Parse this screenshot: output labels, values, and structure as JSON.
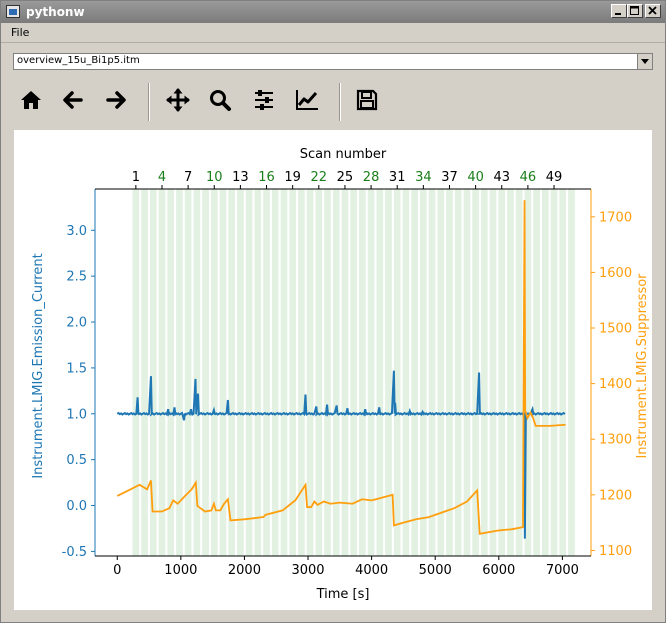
{
  "window": {
    "title": "pythonw",
    "controls": [
      "minimize",
      "maximize",
      "close"
    ]
  },
  "menu": {
    "file": "File"
  },
  "file_select": {
    "value": "overview_15u_Bi1p5.itm"
  },
  "toolbar": {
    "items": [
      "home-icon",
      "back-arrow-icon",
      "forward-arrow-icon",
      "pan-icon",
      "zoom-icon",
      "subplots-config-icon",
      "axes-edit-icon",
      "save-icon"
    ]
  },
  "colors": {
    "emission": "#1f77b4",
    "suppressor": "#ff9f0e",
    "scan_shade": "#e3f1e3",
    "scan_label_even": "#000000",
    "scan_label_green": "#1a7f1a"
  },
  "chart_data": {
    "type": "line",
    "xlabel": "Time [s]",
    "ylabel_left": "Instrument.LMIG.Emission_Current",
    "ylabel_right": "Instrument.LMIG.Suppressor",
    "top_xlabel": "Scan number",
    "xlim": [
      -350,
      7450
    ],
    "ylim_left": [
      -0.55,
      3.45
    ],
    "ylim_right": [
      1090,
      1750
    ],
    "x_ticks": [
      0,
      1000,
      2000,
      3000,
      4000,
      5000,
      6000,
      7000
    ],
    "y_left_ticks": [
      -0.5,
      0.0,
      0.5,
      1.0,
      1.5,
      2.0,
      2.5,
      3.0
    ],
    "y_right_ticks": [
      1100,
      1200,
      1300,
      1400,
      1500,
      1600,
      1700
    ],
    "scan_ticks": [
      {
        "label": "1",
        "scan": 1,
        "green": false
      },
      {
        "label": "4",
        "scan": 4,
        "green": true
      },
      {
        "label": "7",
        "scan": 7,
        "green": false
      },
      {
        "label": "10",
        "scan": 10,
        "green": true
      },
      {
        "label": "13",
        "scan": 13,
        "green": false
      },
      {
        "label": "16",
        "scan": 16,
        "green": true
      },
      {
        "label": "19",
        "scan": 19,
        "green": false
      },
      {
        "label": "22",
        "scan": 22,
        "green": true
      },
      {
        "label": "25",
        "scan": 25,
        "green": false
      },
      {
        "label": "28",
        "scan": 28,
        "green": true
      },
      {
        "label": "31",
        "scan": 31,
        "green": false
      },
      {
        "label": "34",
        "scan": 34,
        "green": true
      },
      {
        "label": "37",
        "scan": 37,
        "green": false
      },
      {
        "label": "40",
        "scan": 40,
        "green": true
      },
      {
        "label": "43",
        "scan": 43,
        "green": false
      },
      {
        "label": "46",
        "scan": 46,
        "green": true
      },
      {
        "label": "49",
        "scan": 49,
        "green": false
      }
    ],
    "scan_time": {
      "first_scan_start": 240,
      "scan_duration": 137,
      "shade_duration": 105,
      "count": 51
    },
    "series": [
      {
        "name": "Instrument.LMIG.Emission_Current",
        "axis": "left",
        "baseline": 1.0,
        "x_range": [
          0,
          7050
        ],
        "spikes": [
          {
            "x": 320,
            "y": 1.18
          },
          {
            "x": 530,
            "y": 1.41
          },
          {
            "x": 800,
            "y": 1.05
          },
          {
            "x": 900,
            "y": 1.07
          },
          {
            "x": 1050,
            "y": 0.93
          },
          {
            "x": 1160,
            "y": 1.05
          },
          {
            "x": 1230,
            "y": 1.38
          },
          {
            "x": 1270,
            "y": 1.22
          },
          {
            "x": 1520,
            "y": 1.04
          },
          {
            "x": 1740,
            "y": 1.15
          },
          {
            "x": 2960,
            "y": 1.21
          },
          {
            "x": 3130,
            "y": 1.08
          },
          {
            "x": 3300,
            "y": 1.1
          },
          {
            "x": 3450,
            "y": 1.09
          },
          {
            "x": 3620,
            "y": 1.06
          },
          {
            "x": 3900,
            "y": 1.05
          },
          {
            "x": 4120,
            "y": 1.07
          },
          {
            "x": 4350,
            "y": 1.47
          },
          {
            "x": 4370,
            "y": 1.12
          },
          {
            "x": 4600,
            "y": 1.03
          },
          {
            "x": 4800,
            "y": 1.02
          },
          {
            "x": 5690,
            "y": 1.45
          },
          {
            "x": 6530,
            "y": 1.05
          }
        ],
        "drop": {
          "x": 6410,
          "y": -0.36
        }
      },
      {
        "name": "Instrument.LMIG.Suppressor",
        "axis": "right",
        "points": [
          [
            0,
            1198
          ],
          [
            350,
            1218
          ],
          [
            470,
            1210
          ],
          [
            530,
            1226
          ],
          [
            555,
            1170
          ],
          [
            700,
            1170
          ],
          [
            820,
            1176
          ],
          [
            880,
            1190
          ],
          [
            950,
            1184
          ],
          [
            1050,
            1196
          ],
          [
            1170,
            1210
          ],
          [
            1235,
            1222
          ],
          [
            1260,
            1180
          ],
          [
            1380,
            1170
          ],
          [
            1480,
            1172
          ],
          [
            1520,
            1184
          ],
          [
            1550,
            1172
          ],
          [
            1620,
            1172
          ],
          [
            1680,
            1184
          ],
          [
            1740,
            1192
          ],
          [
            1780,
            1154
          ],
          [
            2000,
            1156
          ],
          [
            2300,
            1160
          ],
          [
            2330,
            1164
          ],
          [
            2600,
            1172
          ],
          [
            2800,
            1190
          ],
          [
            2960,
            1218
          ],
          [
            2985,
            1178
          ],
          [
            3050,
            1178
          ],
          [
            3100,
            1188
          ],
          [
            3150,
            1182
          ],
          [
            3250,
            1188
          ],
          [
            3350,
            1184
          ],
          [
            3500,
            1186
          ],
          [
            3700,
            1184
          ],
          [
            3850,
            1192
          ],
          [
            4000,
            1190
          ],
          [
            4200,
            1196
          ],
          [
            4330,
            1200
          ],
          [
            4350,
            1145
          ],
          [
            4500,
            1150
          ],
          [
            4700,
            1156
          ],
          [
            4900,
            1160
          ],
          [
            5100,
            1168
          ],
          [
            5300,
            1176
          ],
          [
            5500,
            1188
          ],
          [
            5660,
            1208
          ],
          [
            5700,
            1130
          ],
          [
            6000,
            1136
          ],
          [
            6200,
            1138
          ],
          [
            6380,
            1142
          ],
          [
            6405,
            1730
          ],
          [
            6415,
            1352
          ],
          [
            6450,
            1338
          ],
          [
            6500,
            1348
          ],
          [
            6540,
            1338
          ],
          [
            6580,
            1324
          ],
          [
            6800,
            1324
          ],
          [
            7050,
            1326
          ]
        ]
      }
    ]
  }
}
